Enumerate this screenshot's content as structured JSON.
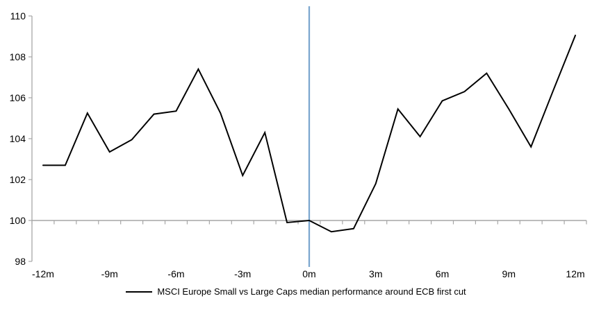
{
  "chart_data": {
    "type": "line",
    "title": "",
    "xlabel": "",
    "ylabel": "",
    "x_months": [
      -12,
      -11,
      -10,
      -9,
      -8,
      -7,
      -6,
      -5,
      -4,
      -3,
      -2,
      -1,
      0,
      1,
      2,
      3,
      4,
      5,
      6,
      7,
      8,
      9,
      10,
      11,
      12
    ],
    "series": [
      {
        "name": "MSCI Europe Small vs Large Caps median performance around ECB first cut",
        "color": "#000000",
        "values": [
          102.7,
          102.7,
          105.25,
          103.35,
          103.95,
          105.2,
          105.35,
          107.4,
          105.25,
          102.2,
          104.3,
          99.9,
          100.0,
          99.45,
          99.6,
          101.8,
          105.45,
          104.1,
          105.85,
          106.3,
          107.2,
          105.45,
          103.6,
          106.35,
          109.05
        ]
      }
    ],
    "x_ticks": [
      {
        "label": "-12m",
        "month": -12
      },
      {
        "label": "-9m",
        "month": -9
      },
      {
        "label": "-6m",
        "month": -6
      },
      {
        "label": "-3m",
        "month": -3
      },
      {
        "label": "0m",
        "month": 0
      },
      {
        "label": "3m",
        "month": 3
      },
      {
        "label": "6m",
        "month": 6
      },
      {
        "label": "9m",
        "month": 9
      },
      {
        "label": "12m",
        "month": 12
      }
    ],
    "y_ticks": [
      98,
      100,
      102,
      104,
      106,
      108,
      110
    ],
    "ylim": [
      98,
      110
    ],
    "baseline_value": 100,
    "event_line": {
      "month": 0,
      "color": "#7ca7cf"
    },
    "legend_position": "bottom",
    "grid": "single horizontal line at baseline value",
    "colors": {
      "axis": "#a6a6a6",
      "series_line": "#000000",
      "text": "#000000",
      "background": "#ffffff"
    }
  }
}
